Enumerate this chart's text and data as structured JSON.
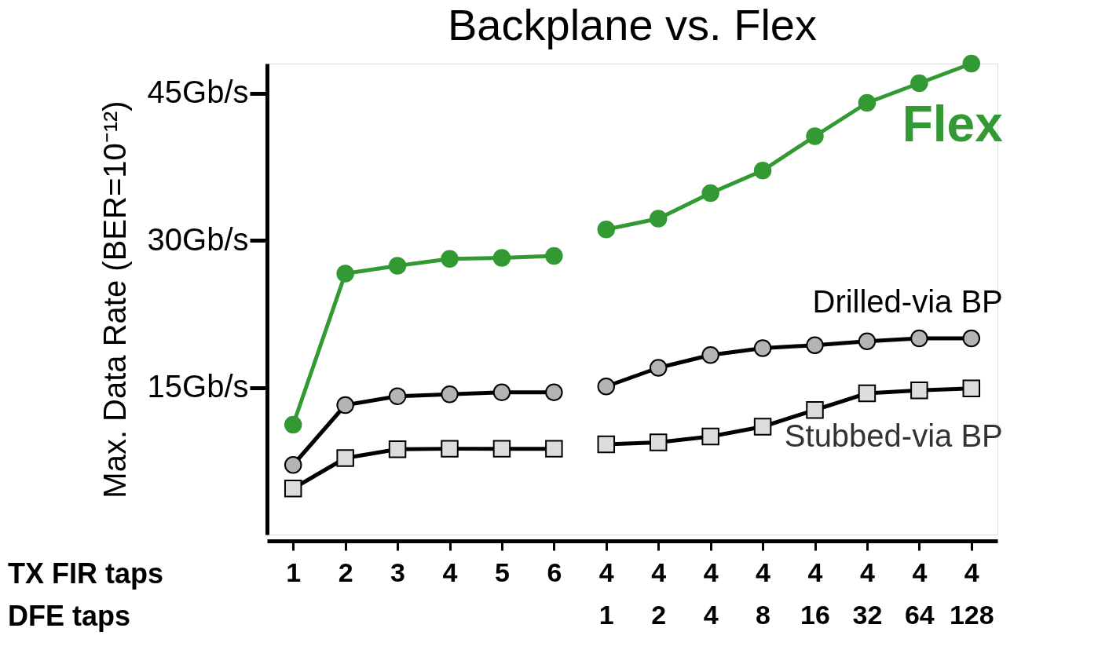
{
  "chart_data": {
    "type": "line",
    "title": "Backplane vs. Flex",
    "ylabel": "Max. Data Rate (BER=10⁻¹²)",
    "categories": [
      "1",
      "2",
      "3",
      "4",
      "5",
      "6",
      "4\n1",
      "4\n2",
      "4\n4",
      "4\n8",
      "4\n16",
      "4\n32",
      "4\n64",
      "4\n128"
    ],
    "annotations": [
      "TX FIR taps",
      "DFE taps"
    ],
    "ylim": [
      0,
      48
    ],
    "yticks": [
      {
        "value": 15,
        "label": "15Gb/s"
      },
      {
        "value": 30,
        "label": "30Gb/s"
      },
      {
        "value": 45,
        "label": "45Gb/s"
      }
    ],
    "legend": "right",
    "series": [
      {
        "name": "Flex",
        "color": "#339933",
        "marker": "circle",
        "values": [
          11.2,
          26.6,
          27.4,
          28.1,
          28.2,
          28.4,
          31.1,
          32.2,
          34.8,
          37.1,
          40.6,
          44.0,
          46.0,
          48.0
        ]
      },
      {
        "name": "Drilled-via BP",
        "color": "#000000",
        "marker": "circle",
        "values": [
          7.1,
          13.2,
          14.1,
          14.3,
          14.5,
          14.5,
          15.1,
          17.0,
          18.3,
          19.0,
          19.3,
          19.7,
          20.0,
          20.0
        ]
      },
      {
        "name": "Stubbed-via BP",
        "color": "#000000",
        "marker": "square",
        "values": [
          4.7,
          7.8,
          8.7,
          8.75,
          8.75,
          8.75,
          9.2,
          9.4,
          10.0,
          11.0,
          12.7,
          14.4,
          14.7,
          14.9
        ]
      }
    ]
  }
}
